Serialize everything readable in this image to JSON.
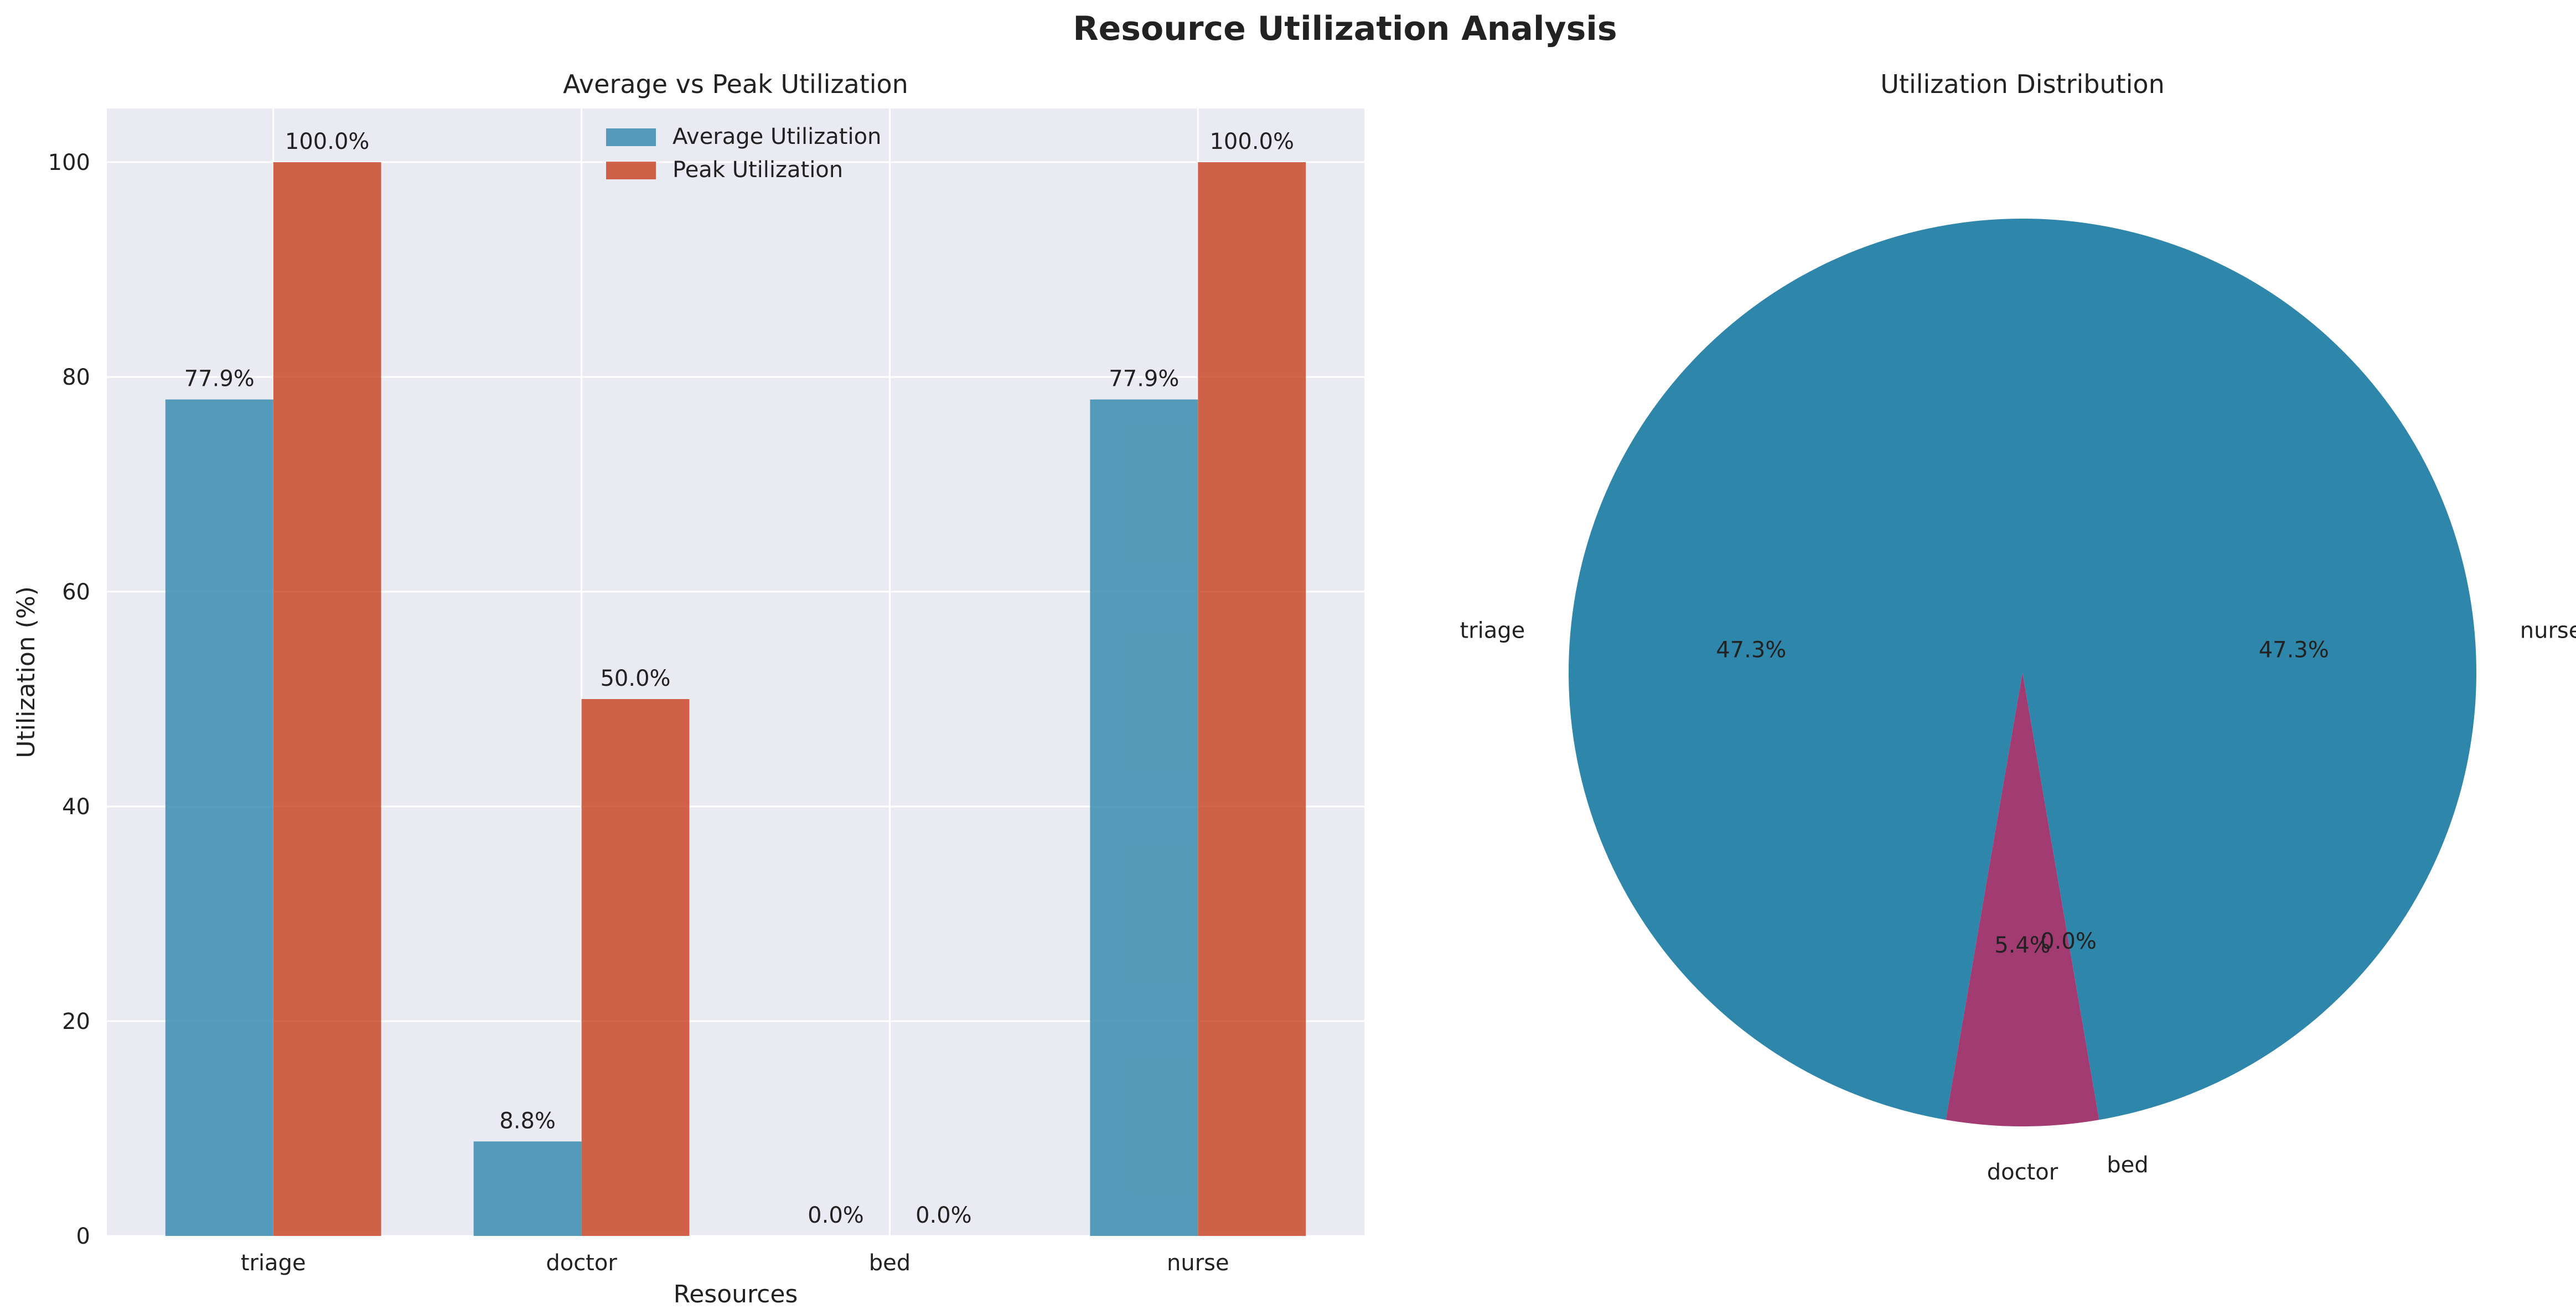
{
  "suptitle": "Resource Utilization Analysis",
  "colors": {
    "average": "#2e86ab",
    "peak": "#c73e1d",
    "pie_main": "#2e86ab",
    "pie_doctor": "#a23b72",
    "panel_bg": "#eaeaf2",
    "grid": "#ffffff",
    "text": "#222222"
  },
  "chart_data": [
    {
      "type": "bar",
      "title": "Average vs Peak Utilization",
      "xlabel": "Resources",
      "ylabel": "Utilization (%)",
      "categories": [
        "triage",
        "doctor",
        "bed",
        "nurse"
      ],
      "ylim": [
        0,
        105
      ],
      "yticks": [
        0,
        20,
        40,
        60,
        80,
        100
      ],
      "grid": true,
      "legend": "upper center",
      "series": [
        {
          "name": "Average Utilization",
          "values": [
            77.9,
            8.8,
            0.0,
            77.9
          ],
          "labels": [
            "77.9%",
            "8.8%",
            "0.0%",
            "77.9%"
          ]
        },
        {
          "name": "Peak Utilization",
          "values": [
            100.0,
            50.0,
            0.0,
            100.0
          ],
          "labels": [
            "100.0%",
            "50.0%",
            "0.0%",
            "100.0%"
          ]
        }
      ]
    },
    {
      "type": "pie",
      "title": "Utilization Distribution",
      "labels": [
        "triage",
        "doctor",
        "bed",
        "nurse"
      ],
      "values": [
        47.3,
        5.4,
        0.0,
        47.3
      ],
      "autopct": [
        "47.3%",
        "5.4%",
        "0.0%",
        "47.3%"
      ],
      "start_angle": 90
    }
  ]
}
